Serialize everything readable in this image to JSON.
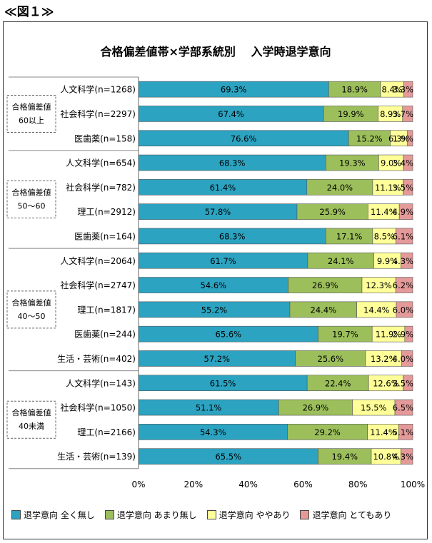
{
  "figure_label": "≪図１≫",
  "chart_data": {
    "type": "bar",
    "orientation": "horizontal",
    "stacked": "percent",
    "title": "合格偏差値帯×学部系統別　 入学時退学意向",
    "xlim": [
      0,
      100
    ],
    "x_ticks": [
      "0%",
      "20%",
      "40%",
      "60%",
      "80%",
      "100%"
    ],
    "groups": [
      {
        "label_lines": [
          "合格偏差値",
          "60以上"
        ],
        "rows": [
          0,
          1,
          2
        ]
      },
      {
        "label_lines": [
          "合格偏差値",
          "50～60"
        ],
        "rows": [
          3,
          4,
          5,
          6
        ]
      },
      {
        "label_lines": [
          "合格偏差値",
          "40～50"
        ],
        "rows": [
          7,
          8,
          9,
          10,
          11
        ]
      },
      {
        "label_lines": [
          "合格偏差値",
          "40未満"
        ],
        "rows": [
          12,
          13,
          14,
          15
        ]
      }
    ],
    "categories": [
      "人文科学(n=1268)",
      "社会科学(n=2297)",
      "医歯薬(n=158)",
      "人文科学(n=654)",
      "社会科学(n=782)",
      "理工(n=2912)",
      "医歯薬(n=164)",
      "人文科学(n=2064)",
      "社会科学(n=2747)",
      "理工(n=1817)",
      "医歯薬(n=244)",
      "生活・芸術(n=402)",
      "人文科学(n=143)",
      "社会科学(n=1050)",
      "理工(n=2166)",
      "生活・芸術(n=139)"
    ],
    "series": [
      {
        "name": "退学意向 全く無し",
        "color": "#2ba3c1",
        "values": [
          69.3,
          67.4,
          76.6,
          68.3,
          61.4,
          57.8,
          68.3,
          61.7,
          54.6,
          55.2,
          65.6,
          57.2,
          61.5,
          51.1,
          54.3,
          65.5
        ]
      },
      {
        "name": "退学意向 あまり無し",
        "color": "#9cbf5b",
        "values": [
          18.9,
          19.9,
          15.2,
          19.3,
          24.0,
          25.9,
          17.1,
          24.1,
          26.9,
          24.4,
          19.7,
          25.6,
          22.4,
          26.9,
          29.2,
          19.4
        ]
      },
      {
        "name": "退学意向 ややあり",
        "color": "#ffff99",
        "values": [
          8.4,
          8.9,
          6.3,
          9.0,
          11.1,
          11.4,
          8.5,
          9.9,
          12.3,
          14.4,
          11.9,
          13.2,
          12.6,
          15.5,
          11.4,
          10.8
        ]
      },
      {
        "name": "退学意向 とてもあり",
        "color": "#e59a9a",
        "values": [
          3.3,
          3.7,
          1.9,
          3.4,
          3.5,
          4.9,
          6.1,
          4.3,
          6.2,
          6.0,
          2.9,
          4.0,
          3.5,
          6.5,
          5.1,
          4.3
        ]
      }
    ],
    "data_labels": [
      [
        "69.3%",
        "18.9%",
        "8.4%",
        "3.3%"
      ],
      [
        "67.4%",
        "19.9%",
        "8.9%",
        "3.7%"
      ],
      [
        "76.6%",
        "15.2%",
        "6.3%",
        "1.9%"
      ],
      [
        "68.3%",
        "19.3%",
        "9.0%",
        "3.4%"
      ],
      [
        "61.4%",
        "24.0%",
        "11.1%",
        "3.5%"
      ],
      [
        "57.8%",
        "25.9%",
        "11.4%",
        "4.9%"
      ],
      [
        "68.3%",
        "17.1%",
        "8.5%",
        "6.1%"
      ],
      [
        "61.7%",
        "24.1%",
        "9.9%",
        "4.3%"
      ],
      [
        "54.6%",
        "26.9%",
        "12.3%",
        "6.2%"
      ],
      [
        "55.2%",
        "24.4%",
        "14.4%",
        "6.0%"
      ],
      [
        "65.6%",
        "19.7%",
        "11.9%",
        "2.9%"
      ],
      [
        "57.2%",
        "25.6%",
        "13.2%",
        "4.0%"
      ],
      [
        "61.5%",
        "22.4%",
        "12.6%",
        "3.5%"
      ],
      [
        "51.1%",
        "26.9%",
        "15.5%",
        "6.5%"
      ],
      [
        "54.3%",
        "29.2%",
        "11.4%",
        "5.1%"
      ],
      [
        "65.5%",
        "19.4%",
        "10.8%",
        "4.3%"
      ]
    ],
    "legend_position": "bottom",
    "grid": false
  }
}
